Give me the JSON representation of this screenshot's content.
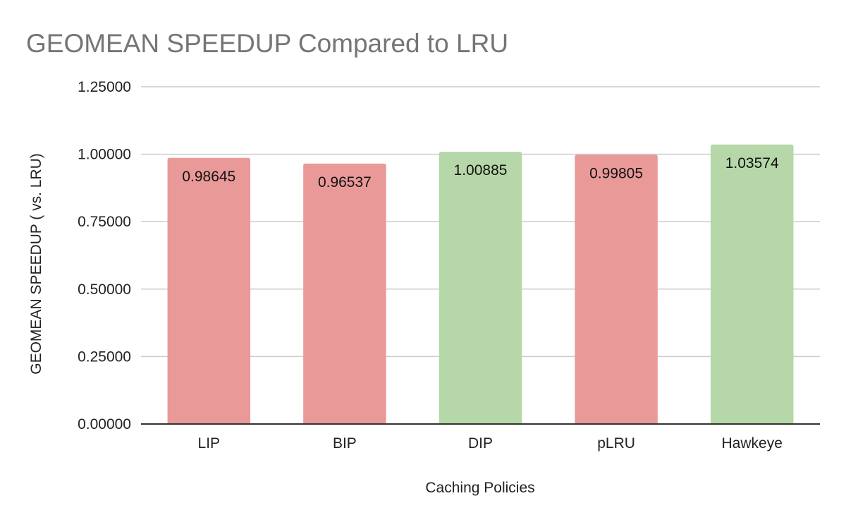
{
  "chart_data": {
    "type": "bar",
    "title": "GEOMEAN SPEEDUP Compared to LRU",
    "xlabel": "Caching Policies",
    "ylabel": "GEOMEAN SPEEDUP ( vs. LRU)",
    "categories": [
      "LIP",
      "BIP",
      "DIP",
      "pLRU",
      "Hawkeye"
    ],
    "values": [
      0.98645,
      0.96537,
      1.00885,
      0.99805,
      1.03574
    ],
    "data_labels": [
      "0.98645",
      "0.96537",
      "1.00885",
      "0.99805",
      "1.03574"
    ],
    "ylim": [
      0,
      1.25
    ],
    "yticks": [
      "0.00000",
      "0.25000",
      "0.50000",
      "0.75000",
      "1.00000",
      "1.25000"
    ],
    "ytick_values": [
      0,
      0.25,
      0.5,
      0.75,
      1.0,
      1.25
    ],
    "bar_colors": [
      "#ea9999",
      "#ea9999",
      "#b6d7a8",
      "#ea9999",
      "#b6d7a8"
    ],
    "grid": true,
    "legend": "none"
  }
}
